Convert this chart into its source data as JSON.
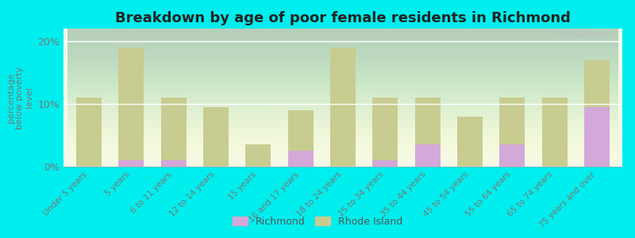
{
  "title": "Breakdown by age of poor female residents in Richmond",
  "ylabel": "percentage\nbelow poverty\nlevel",
  "categories": [
    "Under 5 years",
    "5 years",
    "6 to 11 years",
    "12 to 14 years",
    "15 years",
    "16 and 17 years",
    "18 to 24 years",
    "25 to 34 years",
    "35 to 44 years",
    "45 to 54 years",
    "55 to 64 years",
    "65 to 74 years",
    "75 years and over"
  ],
  "richmond_values": [
    0.0,
    1.0,
    1.0,
    0.0,
    0.0,
    2.5,
    0.0,
    1.0,
    3.5,
    0.0,
    3.5,
    0.0,
    9.5
  ],
  "rhode_island_values": [
    11.0,
    19.0,
    11.0,
    9.5,
    3.5,
    9.0,
    19.0,
    11.0,
    11.0,
    8.0,
    11.0,
    11.0,
    17.0
  ],
  "richmond_color": "#d4a8d8",
  "rhode_island_color": "#c8cc90",
  "background_color": "#00eeee",
  "plot_bg_top": "#ffffff",
  "plot_bg_bottom": "#d8e8c0",
  "ylim": [
    0,
    22
  ],
  "yticks": [
    0,
    10,
    20
  ],
  "ytick_labels": [
    "0%",
    "10%",
    "20%"
  ],
  "title_fontsize": 13,
  "label_fontsize": 7.5,
  "watermark": "City-Data.com",
  "bar_width": 0.6
}
